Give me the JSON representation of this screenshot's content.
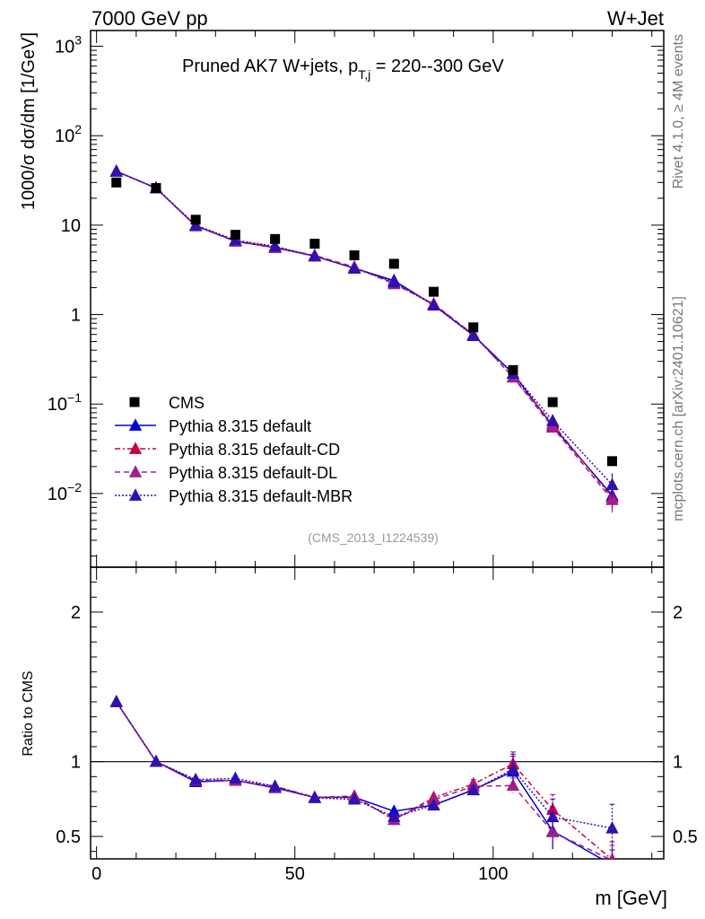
{
  "header": {
    "left": "7000 GeV pp",
    "right": "W+Jet"
  },
  "side_labels": {
    "rivet": "Rivet 4.1.0, ≥ 4M events",
    "mcplots": "mcplots.cern.ch [arXiv:2401.10621]"
  },
  "chart_data": [
    {
      "type": "line",
      "title_main": "Pruned AK7 W+jets, p",
      "title_sub": "T,j",
      "title_rest": " = 220--300 GeV",
      "analysis_id": "(CMS_2013_I1224539)",
      "ylabel": "1000/σ  dσ/dm [1/GeV]",
      "yscale": "log",
      "ylim": [
        0.0015,
        1500
      ],
      "xlim": [
        -1.5,
        143
      ],
      "y_ticks": [
        {
          "v": 1000,
          "base": "10",
          "exp": "3"
        },
        {
          "v": 100,
          "base": "10",
          "exp": "2"
        },
        {
          "v": 10,
          "base": "10",
          "exp": ""
        },
        {
          "v": 1,
          "base": "1",
          "exp": ""
        },
        {
          "v": 0.1,
          "base": "10",
          "exp": "−1"
        },
        {
          "v": 0.01,
          "base": "10",
          "exp": "−2"
        }
      ],
      "x": [
        5,
        15,
        25,
        35,
        45,
        55,
        65,
        75,
        85,
        95,
        105,
        115,
        130
      ],
      "data_series": {
        "name": "CMS",
        "color": "#000000",
        "values": [
          30,
          26,
          11.5,
          7.8,
          7.0,
          6.2,
          4.6,
          3.7,
          1.8,
          0.72,
          0.24,
          0.105,
          0.023
        ]
      },
      "series": [
        {
          "name": "Pythia 8.315 default",
          "color": "#0000dd",
          "dash": "",
          "values": [
            40,
            26,
            9.8,
            6.6,
            5.6,
            4.5,
            3.3,
            2.4,
            1.28,
            0.59,
            0.22,
            0.057,
            0.0095
          ]
        },
        {
          "name": "Pythia 8.315 default-CD",
          "color": "#c8004b",
          "dash": "6 3 2 3",
          "values": [
            40,
            26,
            9.9,
            6.7,
            5.7,
            4.5,
            3.3,
            2.3,
            1.3,
            0.6,
            0.2,
            0.06,
            0.009
          ]
        },
        {
          "name": "Pythia 8.315 default-DL",
          "color": "#a0208c",
          "dash": "6 4",
          "values": [
            40,
            26,
            9.9,
            6.6,
            5.6,
            4.6,
            3.4,
            2.2,
            1.32,
            0.6,
            0.2,
            0.055,
            0.0085
          ]
        },
        {
          "name": "Pythia 8.315 default-MBR",
          "color": "#3010b0",
          "dash": "2 2",
          "values": [
            40,
            26,
            10.0,
            6.8,
            5.8,
            4.5,
            3.3,
            2.3,
            1.27,
            0.58,
            0.22,
            0.065,
            0.0125
          ]
        }
      ]
    },
    {
      "type": "line",
      "ylabel": "Ratio to CMS",
      "xlabel": "m [GeV]",
      "ylim": [
        0.35,
        2.3
      ],
      "xlim": [
        -1.5,
        143
      ],
      "y_ticks": [
        "0.5",
        "1",
        "2"
      ],
      "x_ticks": [
        "0",
        "50",
        "100"
      ],
      "reference": 1,
      "x": [
        5,
        15,
        25,
        35,
        45,
        55,
        65,
        75,
        85,
        95,
        105,
        115,
        130
      ],
      "series": [
        {
          "name": "Pythia 8.315 default",
          "color": "#0000dd",
          "dash": "",
          "values": [
            1.4,
            1.0,
            0.865,
            0.875,
            0.825,
            0.76,
            0.762,
            0.668,
            0.71,
            0.812,
            0.935,
            0.535,
            0.31
          ],
          "err_last": [
            0,
            0,
            0,
            0,
            0,
            0,
            0,
            0,
            0,
            0.03,
            0.1,
            0.12,
            0.1
          ]
        },
        {
          "name": "Pythia 8.315 default-CD",
          "color": "#c8004b",
          "dash": "6 3 2 3",
          "values": [
            1.4,
            1.0,
            0.875,
            0.875,
            0.835,
            0.762,
            0.77,
            0.612,
            0.76,
            0.85,
            0.985,
            0.68,
            0.345
          ],
          "err_last": [
            0,
            0,
            0,
            0,
            0,
            0,
            0,
            0,
            0,
            0.03,
            0.08,
            0.1,
            0.12
          ]
        },
        {
          "name": "Pythia 8.315 default-DL",
          "color": "#a0208c",
          "dash": "6 4",
          "values": [
            1.4,
            1.0,
            0.875,
            0.873,
            0.83,
            0.76,
            0.765,
            0.612,
            0.745,
            0.835,
            0.84,
            0.53,
            0.34
          ],
          "err_last": [
            0,
            0,
            0,
            0,
            0,
            0,
            0,
            0,
            0,
            0.03,
            0.05,
            0.1,
            0.1
          ]
        },
        {
          "name": "Pythia 8.315 default-MBR",
          "color": "#3010b0",
          "dash": "2 2",
          "values": [
            1.4,
            1.0,
            0.88,
            0.888,
            0.835,
            0.758,
            0.748,
            0.632,
            0.708,
            0.81,
            0.95,
            0.63,
            0.555
          ],
          "err_last": [
            0,
            0,
            0,
            0,
            0,
            0,
            0,
            0,
            0,
            0.03,
            0.1,
            0.12,
            0.16
          ]
        }
      ]
    }
  ]
}
